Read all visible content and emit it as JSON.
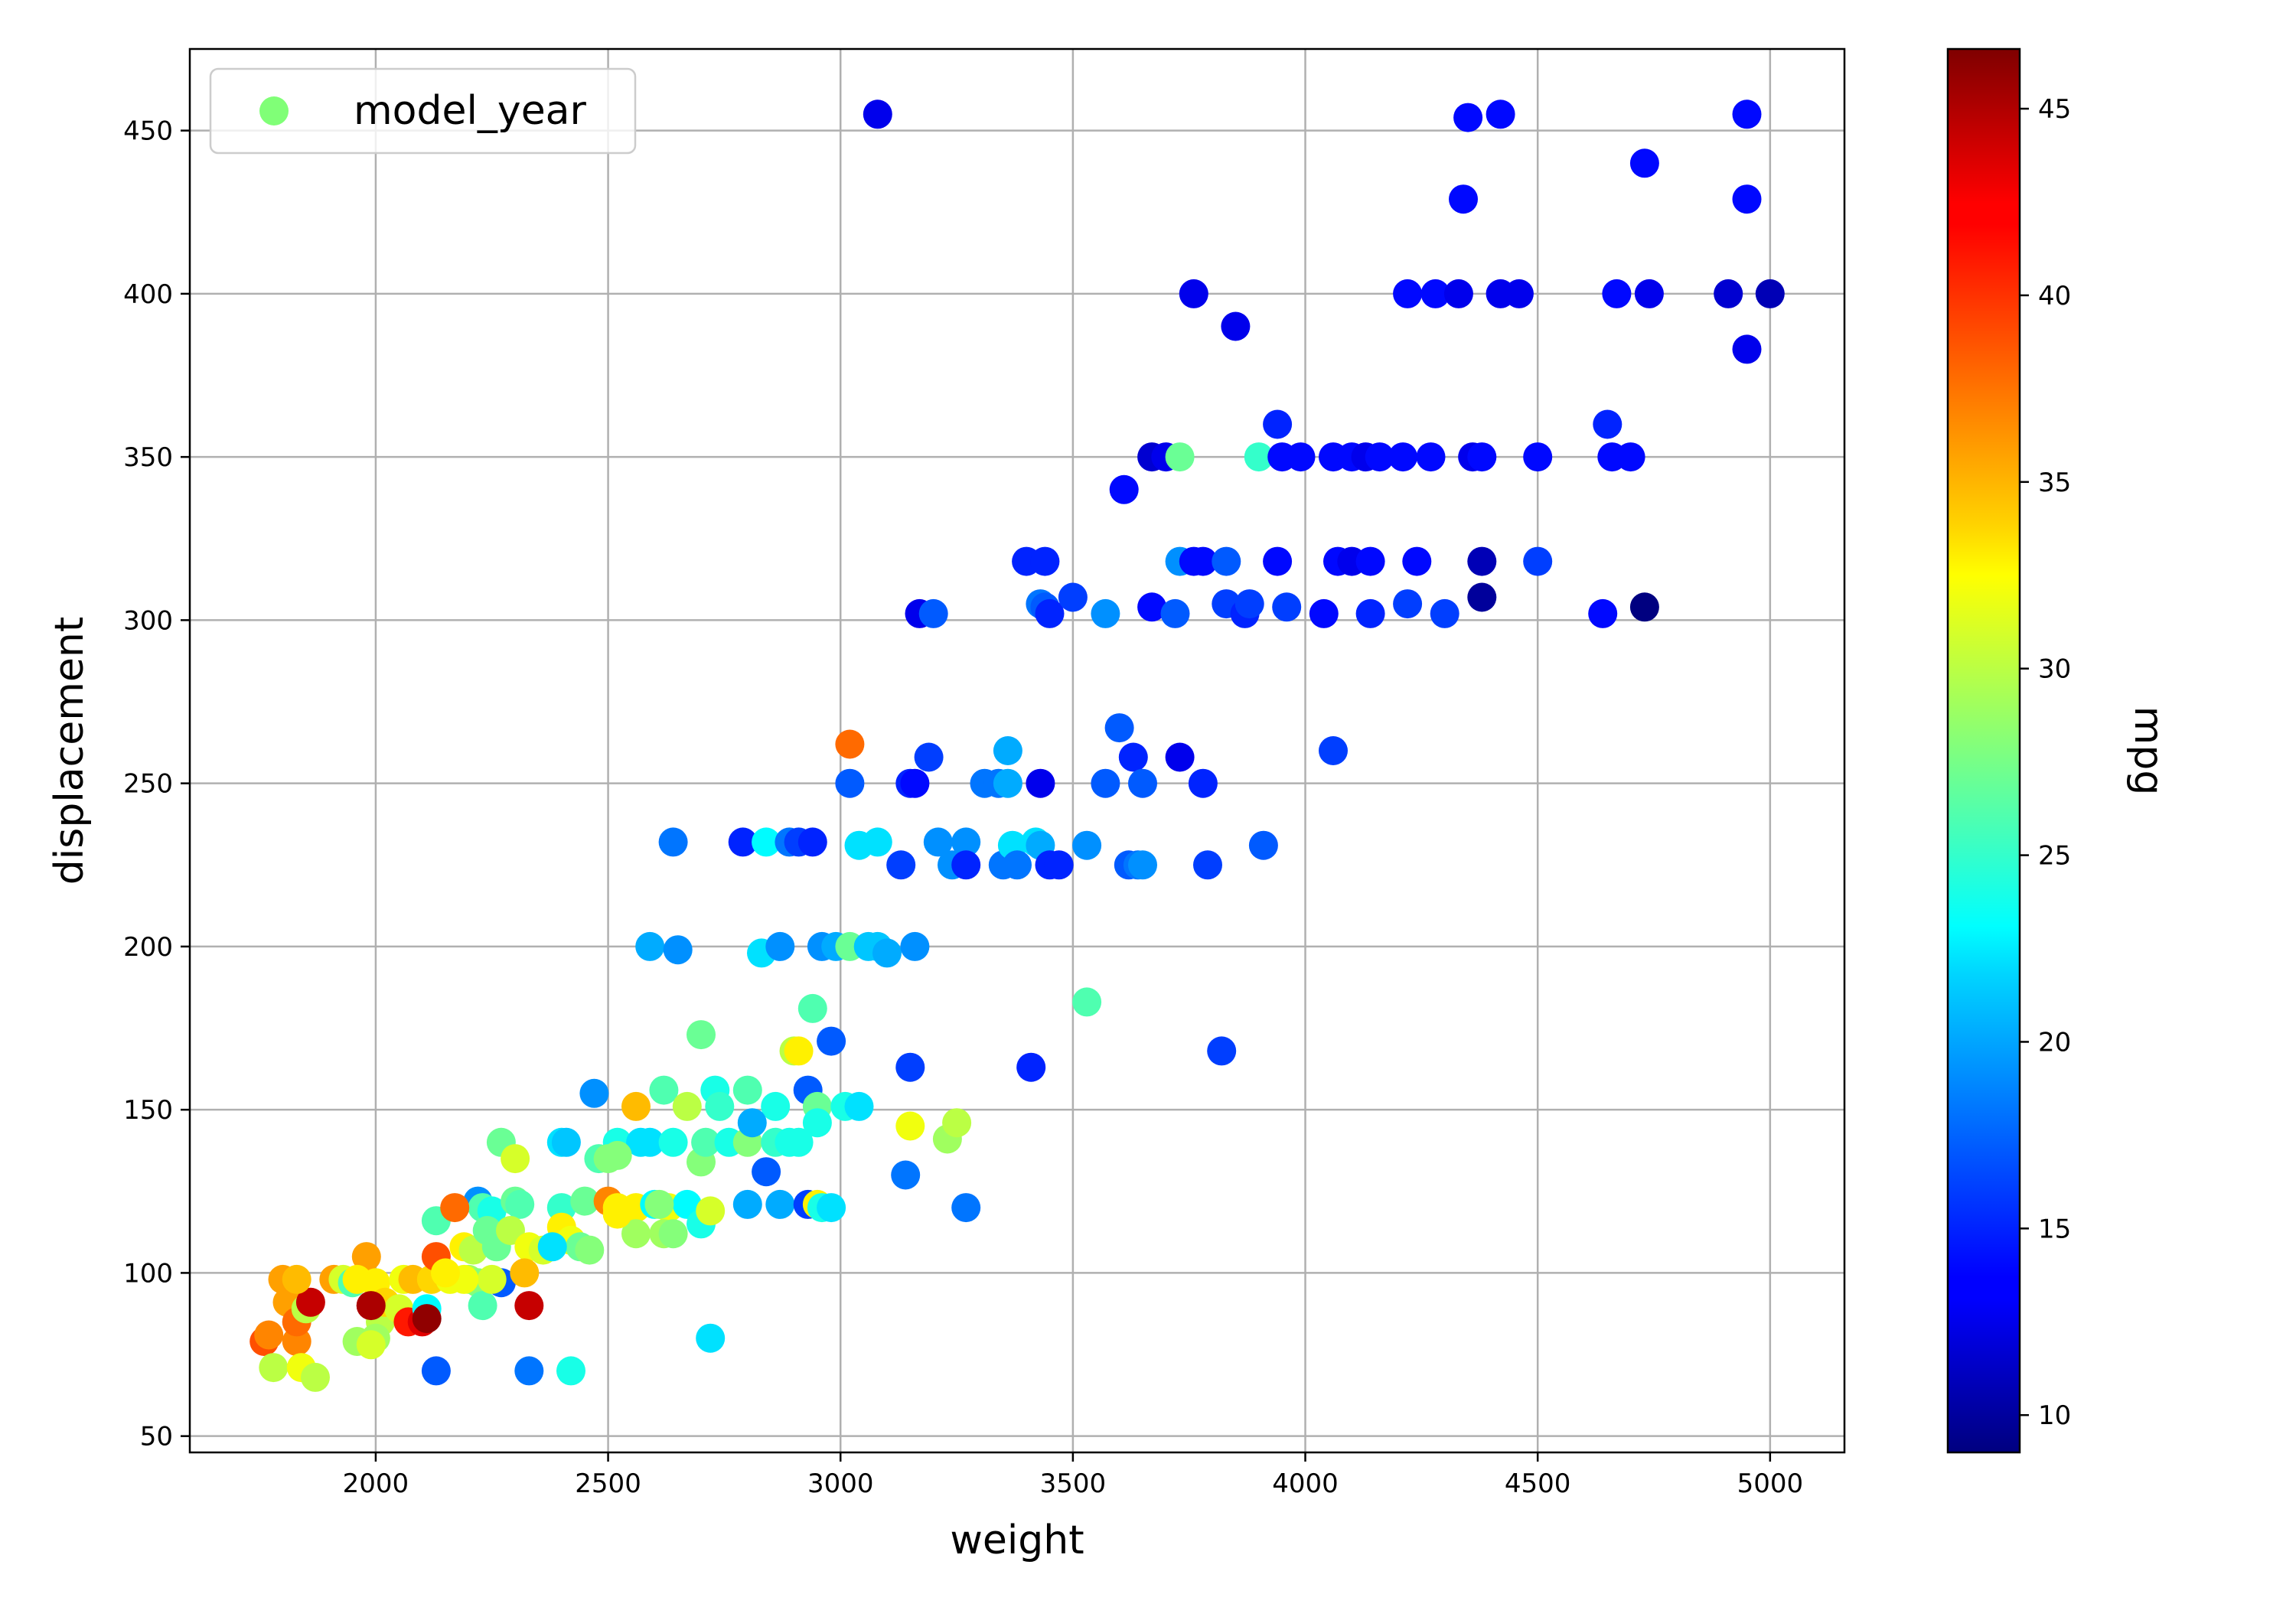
{
  "chart_data": {
    "type": "scatter",
    "xlabel": "weight",
    "ylabel": "displacement",
    "xlim": [
      1600,
      5160
    ],
    "ylim": [
      45,
      475
    ],
    "xticks": [
      2000,
      2500,
      3000,
      3500,
      4000,
      4500,
      5000
    ],
    "yticks": [
      50,
      100,
      150,
      200,
      250,
      300,
      350,
      400,
      450
    ],
    "grid": true,
    "legend": {
      "placement": "top-left",
      "entries": [
        {
          "label": "model_year",
          "color": "#80ff77"
        }
      ]
    },
    "colorbar": {
      "label": "mpg",
      "min": 9,
      "max": 46.6,
      "ticks": [
        10,
        15,
        20,
        25,
        30,
        35,
        40,
        45
      ],
      "colormap": "jet"
    },
    "points_columns": [
      "weight",
      "displacement",
      "mpg"
    ],
    "points": [
      [
        3080,
        455,
        13
      ],
      [
        4350,
        454,
        14
      ],
      [
        4420,
        455,
        14
      ],
      [
        4950,
        455,
        14
      ],
      [
        4730,
        440,
        14
      ],
      [
        4340,
        429,
        14
      ],
      [
        4950,
        429,
        14
      ],
      [
        3760,
        400,
        13
      ],
      [
        3850,
        390,
        13
      ],
      [
        4220,
        400,
        14
      ],
      [
        4280,
        400,
        14
      ],
      [
        4330,
        400,
        13
      ],
      [
        4420,
        400,
        13
      ],
      [
        4460,
        400,
        13
      ],
      [
        4670,
        400,
        14
      ],
      [
        4740,
        400,
        13
      ],
      [
        4910,
        400,
        12
      ],
      [
        5000,
        400,
        11
      ],
      [
        4950,
        383,
        13
      ],
      [
        3940,
        360,
        15
      ],
      [
        4650,
        360,
        15
      ],
      [
        3610,
        340,
        14
      ],
      [
        3670,
        350,
        12
      ],
      [
        3700,
        350,
        13
      ],
      [
        3730,
        350,
        27
      ],
      [
        3900,
        350,
        25
      ],
      [
        3950,
        350,
        14
      ],
      [
        3990,
        350,
        14
      ],
      [
        4060,
        350,
        14
      ],
      [
        4100,
        350,
        14
      ],
      [
        4130,
        350,
        13
      ],
      [
        4160,
        350,
        14
      ],
      [
        4210,
        350,
        14
      ],
      [
        4270,
        350,
        14
      ],
      [
        4360,
        350,
        13
      ],
      [
        4380,
        350,
        14
      ],
      [
        4500,
        350,
        14
      ],
      [
        4660,
        350,
        14
      ],
      [
        4700,
        350,
        14
      ],
      [
        3400,
        318,
        15
      ],
      [
        3440,
        318,
        15
      ],
      [
        3730,
        318,
        19
      ],
      [
        3760,
        318,
        14
      ],
      [
        3780,
        318,
        14
      ],
      [
        3830,
        318,
        17
      ],
      [
        3940,
        318,
        14
      ],
      [
        4070,
        318,
        14
      ],
      [
        4100,
        318,
        13
      ],
      [
        4140,
        318,
        14
      ],
      [
        4240,
        318,
        14
      ],
      [
        4380,
        318,
        11
      ],
      [
        4500,
        318,
        16
      ],
      [
        3170,
        302,
        13
      ],
      [
        3200,
        302,
        17
      ],
      [
        3430,
        305,
        18
      ],
      [
        3440,
        304,
        17
      ],
      [
        3450,
        302,
        15
      ],
      [
        3500,
        307,
        16
      ],
      [
        3570,
        302,
        19
      ],
      [
        3670,
        304,
        14
      ],
      [
        3720,
        302,
        17
      ],
      [
        3830,
        305,
        16
      ],
      [
        3870,
        302,
        15
      ],
      [
        3880,
        305,
        16
      ],
      [
        3960,
        304,
        16
      ],
      [
        4040,
        302,
        14
      ],
      [
        4140,
        302,
        15
      ],
      [
        4220,
        305,
        16
      ],
      [
        4300,
        302,
        16
      ],
      [
        4380,
        307,
        10
      ],
      [
        4640,
        302,
        14
      ],
      [
        4730,
        304,
        9
      ],
      [
        3020,
        262,
        38
      ],
      [
        3600,
        267,
        17
      ],
      [
        3630,
        258,
        15
      ],
      [
        3730,
        258,
        13
      ],
      [
        4060,
        260,
        16
      ],
      [
        3020,
        250,
        17
      ],
      [
        3150,
        250,
        15
      ],
      [
        3160,
        250,
        14
      ],
      [
        3190,
        258,
        16
      ],
      [
        3310,
        250,
        18
      ],
      [
        3340,
        250,
        18
      ],
      [
        3360,
        260,
        20
      ],
      [
        3360,
        250,
        20
      ],
      [
        3430,
        250,
        13
      ],
      [
        3570,
        250,
        17
      ],
      [
        3650,
        250,
        17
      ],
      [
        3780,
        250,
        15
      ],
      [
        2640,
        232,
        18
      ],
      [
        2790,
        232,
        15
      ],
      [
        2840,
        232,
        23
      ],
      [
        2890,
        232,
        18
      ],
      [
        2910,
        232,
        16
      ],
      [
        2940,
        232,
        15
      ],
      [
        3040,
        231,
        22
      ],
      [
        3080,
        232,
        22
      ],
      [
        3130,
        225,
        16
      ],
      [
        3210,
        232,
        19
      ],
      [
        3240,
        225,
        19
      ],
      [
        3270,
        232,
        19
      ],
      [
        3270,
        225,
        15
      ],
      [
        3350,
        225,
        18
      ],
      [
        3370,
        231,
        22
      ],
      [
        3380,
        225,
        18
      ],
      [
        3420,
        232,
        22
      ],
      [
        3430,
        231,
        20
      ],
      [
        3450,
        225,
        15
      ],
      [
        3470,
        225,
        15
      ],
      [
        3530,
        231,
        19
      ],
      [
        3620,
        225,
        17
      ],
      [
        3640,
        225,
        18
      ],
      [
        3650,
        225,
        19
      ],
      [
        3790,
        225,
        16
      ],
      [
        3910,
        231,
        17
      ],
      [
        2590,
        200,
        20
      ],
      [
        2650,
        199,
        19
      ],
      [
        2830,
        198,
        22
      ],
      [
        2870,
        200,
        19
      ],
      [
        2960,
        200,
        19
      ],
      [
        2990,
        200,
        20
      ],
      [
        3020,
        200,
        27
      ],
      [
        3060,
        200,
        21
      ],
      [
        3080,
        200,
        21
      ],
      [
        3100,
        198,
        20
      ],
      [
        3160,
        200,
        19
      ],
      [
        3530,
        183,
        26
      ],
      [
        2700,
        173,
        27
      ],
      [
        2940,
        181,
        26
      ],
      [
        2900,
        168,
        30
      ],
      [
        2910,
        168,
        33
      ],
      [
        2980,
        171,
        17
      ],
      [
        3150,
        163,
        16
      ],
      [
        3410,
        163,
        15
      ],
      [
        3820,
        168,
        16
      ],
      [
        2470,
        155,
        19
      ],
      [
        2620,
        156,
        26
      ],
      [
        2730,
        156,
        24
      ],
      [
        2800,
        156,
        26
      ],
      [
        2930,
        156,
        17
      ],
      [
        2560,
        151,
        35
      ],
      [
        2670,
        151,
        30
      ],
      [
        2740,
        151,
        25
      ],
      [
        2860,
        151,
        24
      ],
      [
        2950,
        151,
        27
      ],
      [
        3010,
        151,
        24
      ],
      [
        3040,
        151,
        22
      ],
      [
        2270,
        140,
        27
      ],
      [
        2300,
        135,
        31
      ],
      [
        2400,
        140,
        22
      ],
      [
        2410,
        140,
        21
      ],
      [
        2480,
        135,
        26
      ],
      [
        2520,
        140,
        24
      ],
      [
        2570,
        140,
        22
      ],
      [
        2590,
        140,
        22
      ],
      [
        2640,
        140,
        24
      ],
      [
        2700,
        134,
        28
      ],
      [
        2710,
        140,
        26
      ],
      [
        2760,
        140,
        24
      ],
      [
        2800,
        140,
        28
      ],
      [
        2860,
        140,
        25
      ],
      [
        2890,
        140,
        24
      ],
      [
        2910,
        140,
        24
      ],
      [
        2950,
        146,
        24
      ],
      [
        3150,
        145,
        32
      ],
      [
        3230,
        141,
        29
      ],
      [
        3250,
        146,
        30
      ],
      [
        2810,
        146,
        20
      ],
      [
        2840,
        131,
        17
      ],
      [
        3140,
        130,
        18
      ],
      [
        2500,
        135,
        28
      ],
      [
        2520,
        136,
        28
      ],
      [
        2220,
        122,
        19
      ],
      [
        2230,
        120,
        26
      ],
      [
        2250,
        119,
        24
      ],
      [
        2300,
        122,
        27
      ],
      [
        2310,
        121,
        26
      ],
      [
        2400,
        120,
        25
      ],
      [
        2450,
        122,
        27
      ],
      [
        2500,
        122,
        37
      ],
      [
        2520,
        120,
        33
      ],
      [
        2560,
        120,
        33
      ],
      [
        2600,
        121,
        23
      ],
      [
        2630,
        120,
        32
      ],
      [
        2670,
        121,
        23
      ],
      [
        2700,
        115,
        24
      ],
      [
        2720,
        119,
        31
      ],
      [
        2800,
        121,
        20
      ],
      [
        2870,
        121,
        20
      ],
      [
        2930,
        121,
        16
      ],
      [
        2950,
        121,
        33
      ],
      [
        2960,
        120,
        24
      ],
      [
        2980,
        120,
        22
      ],
      [
        3270,
        120,
        18
      ],
      [
        2130,
        116,
        26
      ],
      [
        2170,
        120,
        38
      ],
      [
        2190,
        108,
        33
      ],
      [
        2210,
        107,
        30
      ],
      [
        2240,
        113,
        27
      ],
      [
        2260,
        108,
        27
      ],
      [
        2290,
        113,
        30
      ],
      [
        2330,
        108,
        32
      ],
      [
        2360,
        107,
        31
      ],
      [
        2400,
        114,
        33
      ],
      [
        2420,
        110,
        32
      ],
      [
        2440,
        108,
        27
      ],
      [
        2460,
        107,
        28
      ],
      [
        2560,
        112,
        29
      ],
      [
        2620,
        112,
        29
      ],
      [
        2640,
        112,
        28
      ],
      [
        2610,
        121,
        28
      ],
      [
        2520,
        118,
        33
      ],
      [
        2270,
        97,
        17
      ],
      [
        2380,
        108,
        22
      ],
      [
        1760,
        79,
        39
      ],
      [
        1770,
        81,
        37
      ],
      [
        1780,
        71,
        30
      ],
      [
        1800,
        98,
        36
      ],
      [
        1810,
        91,
        36
      ],
      [
        1830,
        79,
        37
      ],
      [
        1830,
        85,
        38
      ],
      [
        1840,
        71,
        32
      ],
      [
        1850,
        89,
        30
      ],
      [
        1860,
        91,
        44
      ],
      [
        1870,
        68,
        30
      ],
      [
        1910,
        98,
        36
      ],
      [
        1930,
        98,
        31
      ],
      [
        1950,
        97,
        26
      ],
      [
        1960,
        79,
        29
      ],
      [
        1980,
        105,
        36
      ],
      [
        1990,
        90,
        43
      ],
      [
        2000,
        97,
        33
      ],
      [
        2010,
        85,
        30
      ],
      [
        2020,
        91,
        34
      ],
      [
        2050,
        89,
        31
      ],
      [
        2060,
        98,
        32
      ],
      [
        2070,
        85,
        41
      ],
      [
        2080,
        98,
        35
      ],
      [
        2100,
        85,
        43
      ],
      [
        2110,
        89,
        23
      ],
      [
        2120,
        98,
        34
      ],
      [
        2130,
        105,
        39
      ],
      [
        2160,
        98,
        32
      ],
      [
        2200,
        98,
        29
      ],
      [
        2220,
        97,
        28
      ],
      [
        2230,
        90,
        26
      ],
      [
        2250,
        98,
        31
      ],
      [
        2330,
        90,
        44
      ],
      [
        2000,
        80,
        29
      ],
      [
        1990,
        78,
        31
      ],
      [
        1990,
        90,
        45
      ],
      [
        2110,
        86,
        46
      ],
      [
        1830,
        98,
        35
      ],
      [
        1960,
        98,
        33
      ],
      [
        2130,
        70,
        17
      ],
      [
        2330,
        70,
        18
      ],
      [
        2420,
        70,
        24
      ],
      [
        2720,
        80,
        22
      ],
      [
        2320,
        100,
        35
      ],
      [
        2190,
        98,
        32
      ],
      [
        2150,
        100,
        33
      ]
    ]
  }
}
